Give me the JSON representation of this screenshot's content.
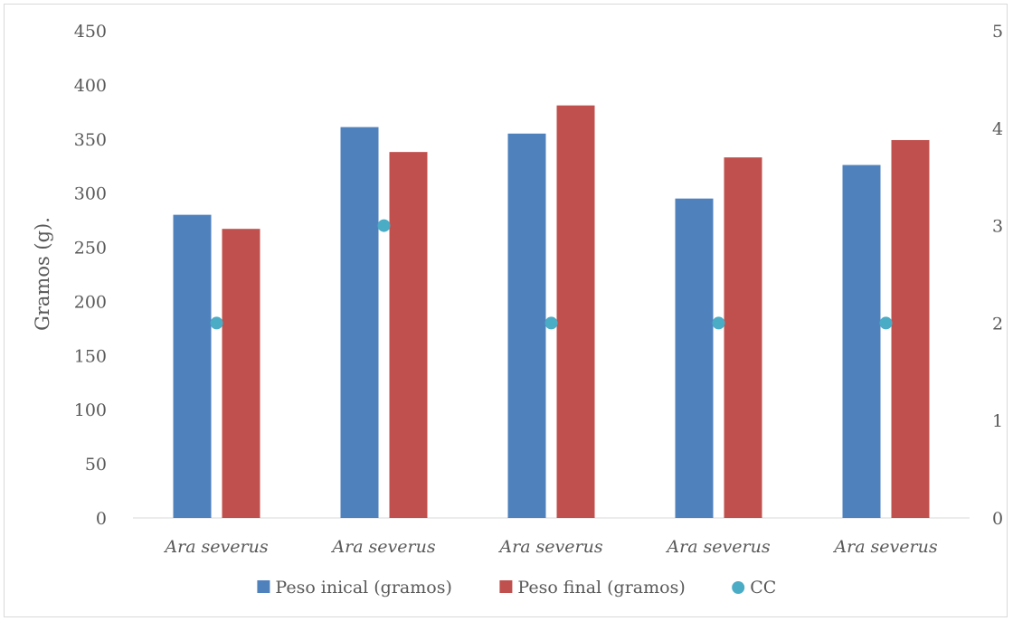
{
  "chart_data": {
    "type": "bar",
    "categories": [
      "Ara severus",
      "Ara severus",
      "Ara severus",
      "Ara severus",
      "Ara severus"
    ],
    "series": [
      {
        "name": "Peso inical (gramos)",
        "axis": "left",
        "kind": "bar",
        "color": "#4f81bd",
        "values": [
          280,
          361,
          355,
          295,
          326
        ]
      },
      {
        "name": "Peso final (gramos)",
        "axis": "left",
        "kind": "bar",
        "color": "#c0504d",
        "values": [
          267,
          338,
          381,
          333,
          349
        ]
      },
      {
        "name": "CC",
        "axis": "right",
        "kind": "scatter",
        "color": "#4bacc6",
        "values": [
          2,
          3,
          2,
          2,
          2
        ]
      }
    ],
    "ylabel": "Gramos (g).",
    "ylim": [
      0,
      450
    ],
    "yticks": [
      "0",
      "50",
      "100",
      "150",
      "200",
      "250",
      "300",
      "350",
      "400",
      "450"
    ],
    "y2lim": [
      0,
      5
    ],
    "y2ticks": [
      "0",
      "1",
      "2",
      "3",
      "4",
      "5"
    ],
    "grid": false,
    "legend_position": "bottom"
  }
}
